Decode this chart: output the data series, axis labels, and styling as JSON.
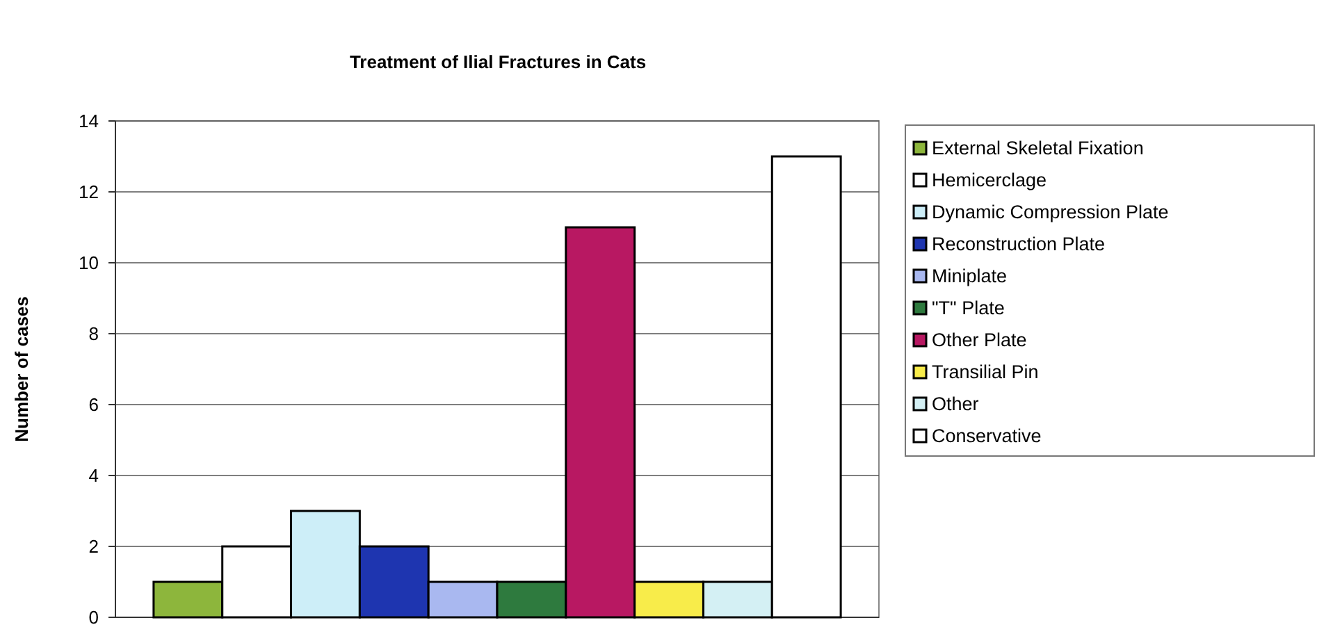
{
  "chart_data": {
    "type": "bar",
    "title": "Treatment of Ilial Fractures in Cats",
    "ylabel": "Number of cases",
    "categories": [
      null
    ],
    "series": [
      {
        "name": "External Skeletal Fixation",
        "color": "#8db63c",
        "values": [
          1
        ]
      },
      {
        "name": "Hemicerclage",
        "color": "#ffffff",
        "values": [
          2
        ]
      },
      {
        "name": "Dynamic Compression Plate",
        "color": "#cdeef8",
        "values": [
          3
        ]
      },
      {
        "name": "Reconstruction Plate",
        "color": "#1e35b0",
        "values": [
          2
        ]
      },
      {
        "name": "Miniplate",
        "color": "#a9b8f0",
        "values": [
          1
        ]
      },
      {
        "name": "\"T\" Plate",
        "color": "#2e7a3e",
        "values": [
          1
        ]
      },
      {
        "name": "Other Plate",
        "color": "#b81862",
        "values": [
          11
        ]
      },
      {
        "name": "Transilial Pin",
        "color": "#f8ec4a",
        "values": [
          1
        ]
      },
      {
        "name": "Other",
        "color": "#d4f0f4",
        "values": [
          1
        ]
      },
      {
        "name": "Conservative",
        "color": "#ffffff",
        "values": [
          13
        ]
      }
    ],
    "ylim": [
      0,
      14
    ],
    "yticks": [
      0,
      2,
      4,
      6,
      8,
      10,
      12,
      14
    ],
    "grid": "y",
    "legend": "right"
  }
}
